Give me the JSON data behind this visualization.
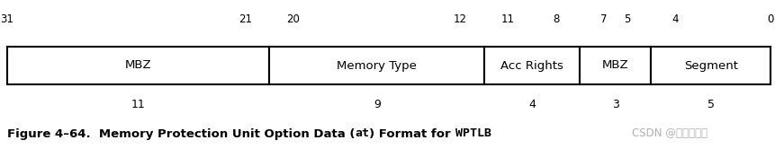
{
  "fields": [
    {
      "label": "MBZ",
      "bits": 11
    },
    {
      "label": "Memory Type",
      "bits": 9
    },
    {
      "label": "Acc Rights",
      "bits": 4
    },
    {
      "label": "MBZ",
      "bits": 3
    },
    {
      "label": "Segment",
      "bits": 5
    }
  ],
  "total_bits": 32,
  "top_label_pairs": [
    [
      31,
      "left"
    ],
    [
      21,
      "left"
    ],
    [
      20,
      "right"
    ],
    [
      12,
      "left"
    ],
    [
      11,
      "right"
    ],
    [
      8,
      "left"
    ],
    [
      7,
      "right"
    ],
    [
      5,
      "left"
    ],
    [
      4,
      "right"
    ],
    [
      0,
      "right"
    ]
  ],
  "width_labels": [
    "11",
    "9",
    "4",
    "3",
    "5"
  ],
  "caption_parts": [
    {
      "text": "Figure 4–64.  Memory Protection Unit Option Data (",
      "style": "normal"
    },
    {
      "text": "at",
      "style": "mono"
    },
    {
      "text": ") Format for ",
      "style": "normal"
    },
    {
      "text": "WPTLB",
      "style": "mono"
    }
  ],
  "watermark": "CSDN @心情复杂机",
  "bg_color": "#ffffff",
  "box_edge_color": "#000000",
  "text_color": "#000000",
  "watermark_color": "#b0b0b0",
  "box_fill": "#ffffff",
  "fig_width": 8.61,
  "fig_height": 1.66,
  "dpi": 100
}
